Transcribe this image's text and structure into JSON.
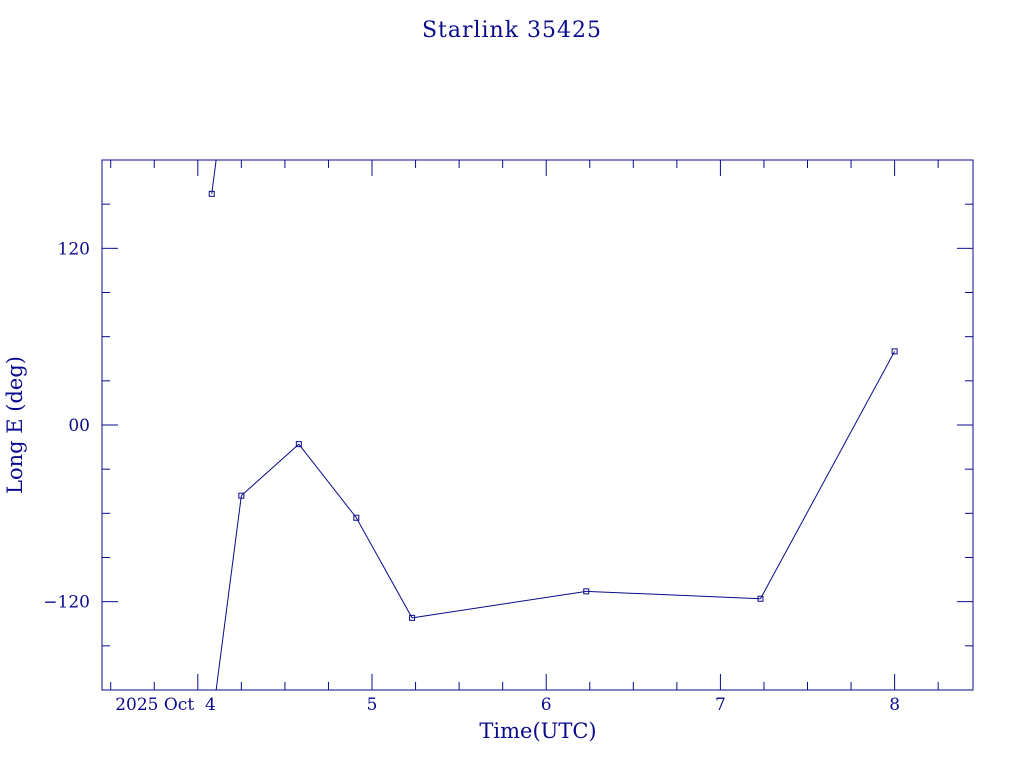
{
  "chart_data": {
    "type": "line",
    "title": "Starlink 35425",
    "xlabel": "Time(UTC)",
    "ylabel": "Long E (deg)",
    "xlim": [
      3.45,
      8.45
    ],
    "ylim": [
      -180,
      180
    ],
    "x_ticks": [
      {
        "value": 4,
        "label": "2025 Oct  4"
      },
      {
        "value": 5,
        "label": "5"
      },
      {
        "value": 6,
        "label": "6"
      },
      {
        "value": 7,
        "label": "7"
      },
      {
        "value": 8,
        "label": "8"
      }
    ],
    "x_minor_step": 0.25,
    "y_ticks": [
      {
        "value": 120,
        "label": "120"
      },
      {
        "value": 0,
        "label": "00"
      },
      {
        "value": -120,
        "label": "−120"
      }
    ],
    "y_minor_step": 30,
    "grid": false,
    "series": [
      {
        "color": "#0a0a8c",
        "points": [
          {
            "x": 4.08,
            "y": 157
          },
          {
            "x": 4.25,
            "y": -48
          },
          {
            "x": 4.58,
            "y": -13
          },
          {
            "x": 4.91,
            "y": -63
          },
          {
            "x": 5.23,
            "y": -131
          },
          {
            "x": 6.23,
            "y": -113
          },
          {
            "x": 7.23,
            "y": -118
          },
          {
            "x": 8.0,
            "y": 50
          }
        ]
      }
    ]
  }
}
